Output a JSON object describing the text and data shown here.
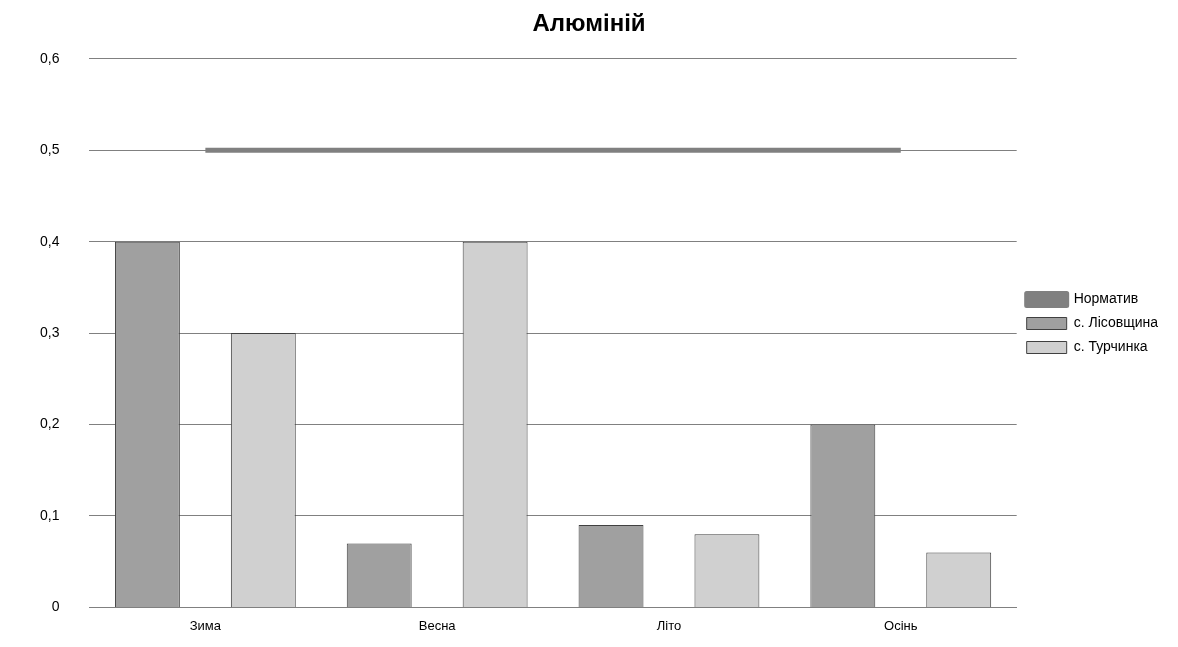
{
  "chart_data": {
    "type": "bar",
    "title": "Алюміній",
    "categories": [
      "Зима",
      "Весна",
      "Літо",
      "Осінь"
    ],
    "series": [
      {
        "name": "с. Лісовщина",
        "color": "#a0a0a0",
        "values": [
          0.4,
          0.07,
          0.09,
          0.2
        ]
      },
      {
        "name": "с. Турчинка",
        "color": "#d0d0d0",
        "values": [
          0.3,
          0.4,
          0.08,
          0.06
        ]
      },
      {
        "name": "Норматив",
        "type": "line",
        "color": "#808080",
        "values": [
          0.5,
          0.5,
          0.5,
          0.5
        ]
      }
    ],
    "ylim": [
      0,
      0.6
    ],
    "yticks": [
      {
        "value": 0,
        "label": "0"
      },
      {
        "value": 0.1,
        "label": "0,1"
      },
      {
        "value": 0.2,
        "label": "0,2"
      },
      {
        "value": 0.3,
        "label": "0,3"
      },
      {
        "value": 0.4,
        "label": "0,4"
      },
      {
        "value": 0.5,
        "label": "0,5"
      },
      {
        "value": 0.6,
        "label": "0,6"
      }
    ],
    "grid": "y",
    "legend": "right",
    "marker": "none"
  }
}
